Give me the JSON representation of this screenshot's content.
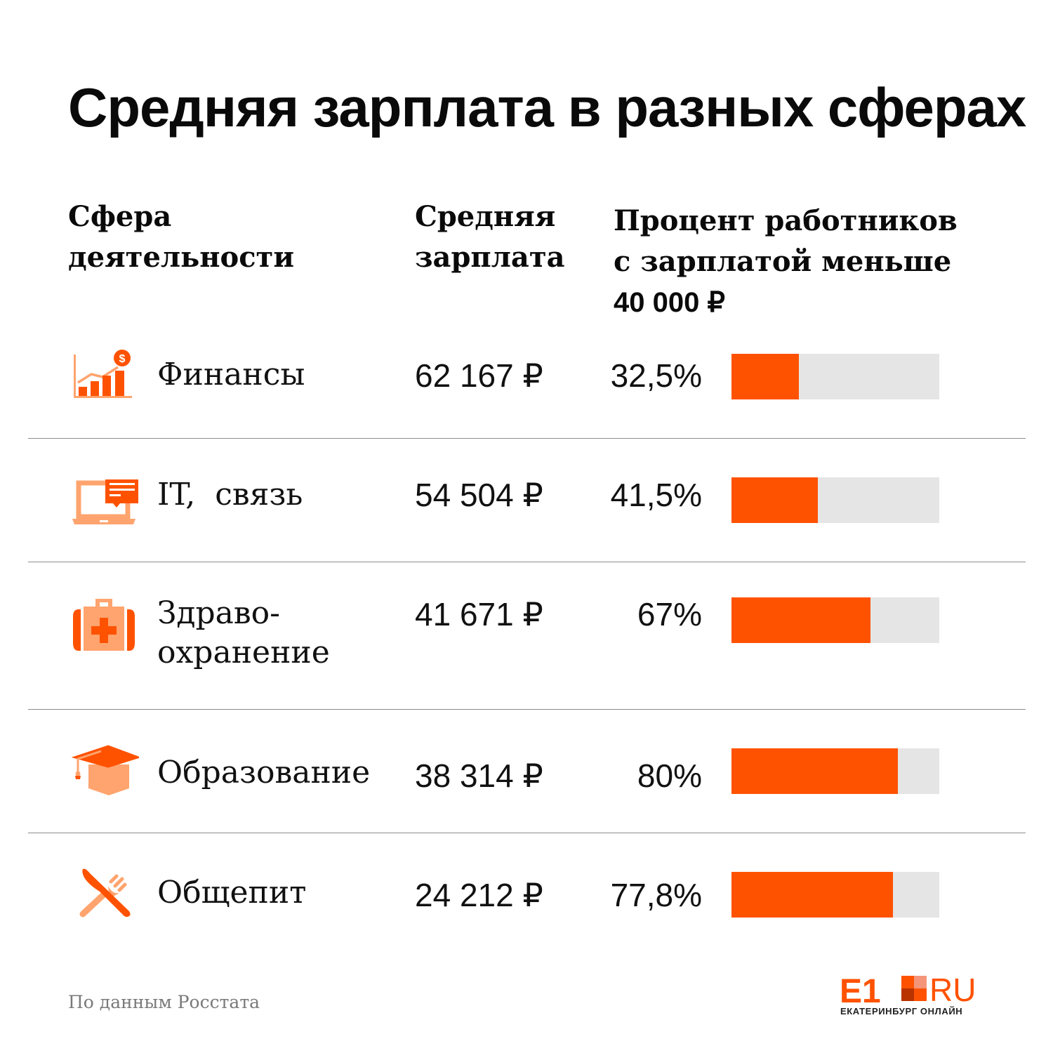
{
  "title": "Средняя зарплата в разных сферах",
  "headers": {
    "sphere": [
      "Сфера",
      "деятельности"
    ],
    "salary": [
      "Средняя",
      "зарплата"
    ],
    "percent": [
      "Процент работников",
      "с зарплатой меньше",
      "40 000 ₽"
    ]
  },
  "colors": {
    "accent": "#ff5200",
    "accent_light": "#ffa46e",
    "track": "#e5e5e5",
    "divider": "#8c8c8c"
  },
  "chart_data": {
    "type": "bar",
    "title": "Средняя зарплата в разных сферах",
    "xlabel": "Процент работников с зарплатой меньше 40 000 ₽",
    "ylabel": "Сфера деятельности",
    "orientation": "horizontal",
    "xlim": [
      0,
      100
    ],
    "categories": [
      "Финансы",
      "IT, связь",
      "Здравоохранение",
      "Образование",
      "Общепит"
    ],
    "series": [
      {
        "name": "Процент работников с зарплатой меньше 40 000 ₽",
        "values": [
          32.5,
          41.5,
          67,
          80,
          77.8
        ],
        "unit": "%"
      },
      {
        "name": "Средняя зарплата",
        "values": [
          62167,
          54504,
          41671,
          38314,
          24212
        ],
        "unit": "₽"
      }
    ],
    "grid": false,
    "legend": "none"
  },
  "rows": [
    {
      "icon": "finance-chart-icon",
      "name": [
        "Финансы"
      ],
      "salary": "62 167 ₽",
      "percent_label": "32,5%",
      "percent": 32.5
    },
    {
      "icon": "laptop-message-icon",
      "name": [
        "IT,  связь"
      ],
      "salary": "54 504 ₽",
      "percent_label": "41,5%",
      "percent": 41.5
    },
    {
      "icon": "medical-kit-icon",
      "name": [
        "Здраво-",
        "охранение"
      ],
      "salary": "41 671 ₽",
      "percent_label": "67%",
      "percent": 67
    },
    {
      "icon": "graduation-cap-icon",
      "name": [
        "Образование"
      ],
      "salary": "38 314 ₽",
      "percent_label": "80%",
      "percent": 80
    },
    {
      "icon": "knife-fork-icon",
      "name": [
        "Общепит"
      ],
      "salary": "24 212 ₽",
      "percent_label": "77,8%",
      "percent": 77.8
    }
  ],
  "footer": {
    "source": "По данным Росстата",
    "logo_text": "E1",
    "logo_ru": "RU",
    "logo_sub": "ЕКАТЕРИНБУРГ ОНЛАЙН"
  }
}
